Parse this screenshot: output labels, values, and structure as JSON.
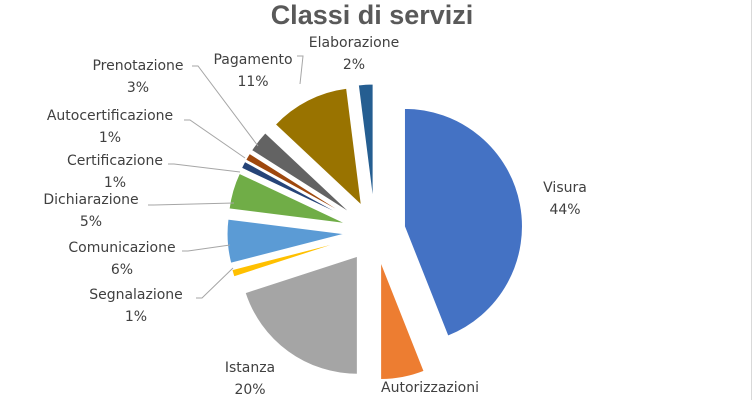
{
  "chart_data": {
    "type": "pie",
    "title": "Classi di servizi",
    "exploded": true,
    "slices": [
      {
        "name": "Visura",
        "percent_label": "44%",
        "value": 44,
        "color": "#4472c4"
      },
      {
        "name": "Autorizzazioni",
        "percent_label": "",
        "value": 6,
        "color": "#ed7d31"
      },
      {
        "name": "Istanza",
        "percent_label": "20%",
        "value": 20,
        "color": "#a5a5a5"
      },
      {
        "name": "Segnalazione",
        "percent_label": "1%",
        "value": 1,
        "color": "#ffc000"
      },
      {
        "name": "Comunicazione",
        "percent_label": "6%",
        "value": 6,
        "color": "#5b9bd5"
      },
      {
        "name": "Dichiarazione",
        "percent_label": "5%",
        "value": 5,
        "color": "#70ad47"
      },
      {
        "name": "Certificazione",
        "percent_label": "1%",
        "value": 1,
        "color": "#264478"
      },
      {
        "name": "Autocertificazione",
        "percent_label": "1%",
        "value": 1,
        "color": "#9e480e"
      },
      {
        "name": "Prenotazione",
        "percent_label": "3%",
        "value": 3,
        "color": "#636363"
      },
      {
        "name": "Pagamento",
        "percent_label": "11%",
        "value": 11,
        "color": "#997300"
      },
      {
        "name": "Elaborazione",
        "percent_label": "2%",
        "value": 2,
        "color": "#255e91"
      }
    ]
  }
}
